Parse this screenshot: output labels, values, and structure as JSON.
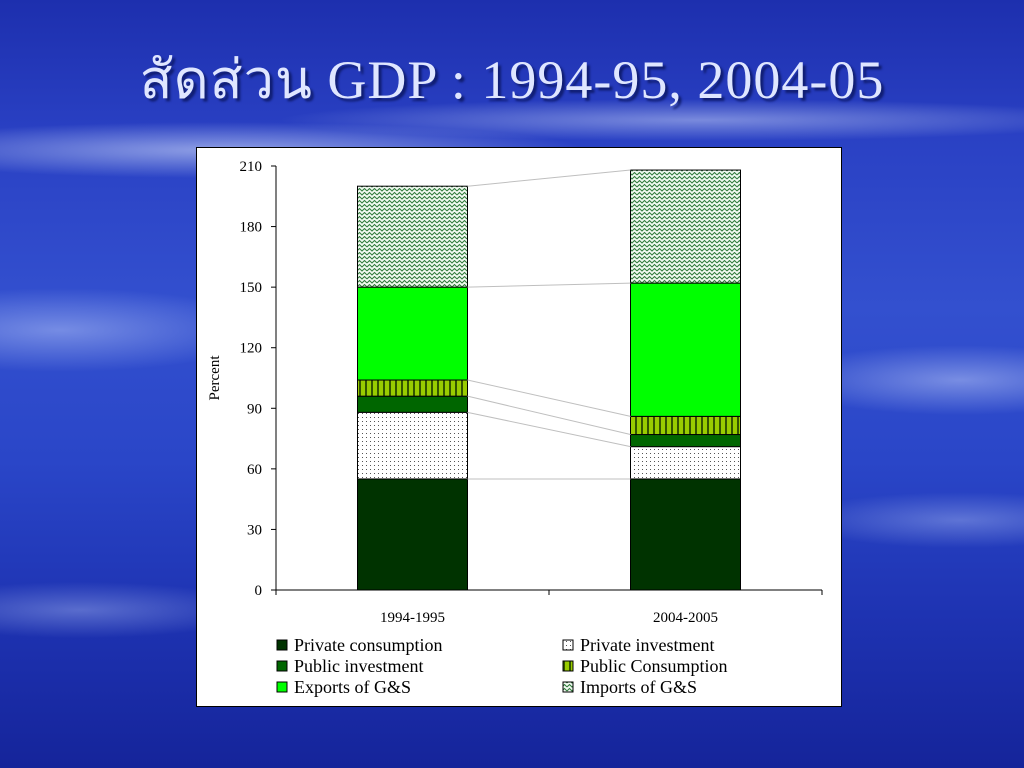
{
  "slide": {
    "title": "สัดส่วน GDP : 1994-95, 2004-05"
  },
  "chart_data": {
    "type": "bar",
    "stacked": true,
    "title": "",
    "xlabel": "",
    "ylabel": "Percent",
    "ylim": [
      0,
      210
    ],
    "yticks": [
      0,
      30,
      60,
      90,
      120,
      150,
      180,
      210
    ],
    "categories": [
      "1994-1995",
      "2004-2005"
    ],
    "series": [
      {
        "name": "Private consumption",
        "values": [
          55,
          55
        ],
        "color": "#003300",
        "pattern": "solid"
      },
      {
        "name": "Private investment",
        "values": [
          33,
          16
        ],
        "color": "#ffffff",
        "pattern": "dots"
      },
      {
        "name": "Public investment",
        "values": [
          8,
          6
        ],
        "color": "#006600",
        "pattern": "solid"
      },
      {
        "name": "Public Consumption",
        "values": [
          8,
          9
        ],
        "color": "#99cc00",
        "pattern": "vstripes"
      },
      {
        "name": "Exports of G&S",
        "values": [
          46,
          66
        ],
        "color": "#00ff00",
        "pattern": "solid"
      },
      {
        "name": "Imports of G&S",
        "values": [
          50,
          56
        ],
        "color": "#e8f5e8",
        "pattern": "zigzag"
      }
    ],
    "grid": false,
    "legend_position": "bottom",
    "series_lines": true
  }
}
